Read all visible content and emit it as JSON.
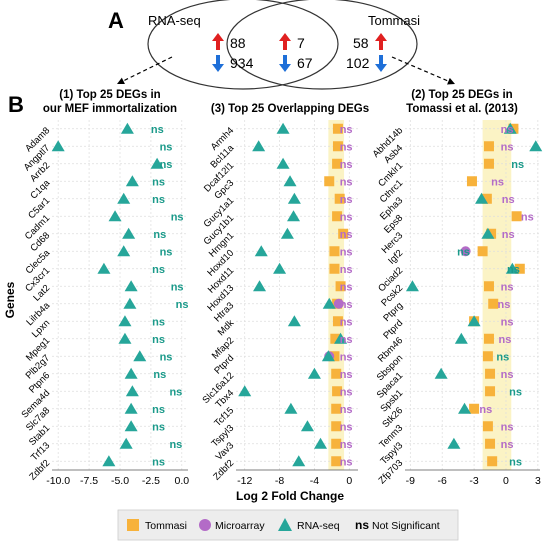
{
  "labels": {
    "A": "A",
    "B": "B"
  },
  "venn": {
    "left_label": "RNA-seq",
    "right_label": "Tommasi",
    "left": {
      "up": "88",
      "down": "934"
    },
    "overlap": {
      "up": "7",
      "down": "67"
    },
    "right": {
      "up": "58",
      "down": "102"
    }
  },
  "ylabel": "Genes",
  "xlabel": "Log 2 Fold Change",
  "ns_text": "ns",
  "legend": [
    {
      "key": "tommasi",
      "label": "Tommasi"
    },
    {
      "key": "micro",
      "label": "Microarray"
    },
    {
      "key": "rnaseq",
      "label": "RNA-seq"
    },
    {
      "key": "ns",
      "label": "Not Significant"
    }
  ],
  "colors": {
    "tommasi": "#F7B23B",
    "micro": "#B36BC7",
    "rnaseq": "#26A69A",
    "ns_tommasi": "#D4792A",
    "ns_micro": "#B36BC7",
    "ns_rnaseq": "#1A9A8A",
    "up": "#E02020",
    "down": "#1E6FD8",
    "highlight": "#FBF3C5"
  },
  "chart_data": [
    {
      "type": "scatter",
      "title_line1": "(1) Top 25 DEGs in",
      "title_line2": "our MEF immortalization",
      "xlim": [
        -10.5,
        0.5
      ],
      "xticks": [
        -10.0,
        -7.5,
        -5.0,
        -2.5,
        0.0
      ],
      "xtick_labels": [
        "-10.0",
        "-7.5",
        "-5.0",
        "-2.5",
        "0.0"
      ],
      "highlight": false,
      "genes": [
        "Adam8",
        "Angptl7",
        "Arrb2",
        "C1qa",
        "C5ar1",
        "Cadm1",
        "Cd68",
        "Clec5a",
        "Cx3cr1",
        "Lat2",
        "Lilrb4a",
        "Lpxn",
        "Mpeg1",
        "Plb2g7",
        "Ptpn6",
        "Sema4d",
        "Slc7a8",
        "Stab1",
        "Trf13",
        "Zdbf2"
      ],
      "rnaseq": [
        -4.4,
        -10.0,
        -2.0,
        -4.0,
        -4.7,
        -5.4,
        -4.3,
        -4.7,
        -6.3,
        -4.1,
        -4.2,
        -4.6,
        -4.6,
        -3.4,
        -4.1,
        -4.0,
        -4.1,
        -4.1,
        -4.5,
        -5.9
      ],
      "ns": [
        {
          "v": "rnaseq",
          "x": -2.5
        },
        {
          "v": "rnaseq",
          "x": -1.8
        },
        {
          "v": "rnaseq",
          "x": -1.8
        },
        {
          "v": "rnaseq",
          "x": -2.4
        },
        {
          "v": "rnaseq",
          "x": -2.4
        },
        {
          "v": "rnaseq",
          "x": -0.9
        },
        {
          "v": "rnaseq",
          "x": -2.3
        },
        {
          "v": "rnaseq",
          "x": -1.8
        },
        {
          "v": "rnaseq",
          "x": -2.4
        },
        {
          "v": "rnaseq",
          "x": -0.9
        },
        {
          "v": "rnaseq",
          "x": -0.5
        },
        {
          "v": "rnaseq",
          "x": -2.4
        },
        {
          "v": "rnaseq",
          "x": -2.4
        },
        {
          "v": "rnaseq",
          "x": -1.8
        },
        {
          "v": "rnaseq",
          "x": -2.3
        },
        {
          "v": "rnaseq",
          "x": -1.0
        },
        {
          "v": "rnaseq",
          "x": -2.4
        },
        {
          "v": "rnaseq",
          "x": -2.4
        },
        {
          "v": "rnaseq",
          "x": -1.0
        },
        {
          "v": "rnaseq",
          "x": -2.4
        }
      ]
    },
    {
      "type": "scatter",
      "title_line1": "(3) Top 25 Overlapping DEGs",
      "title_line2": "",
      "xlim": [
        -13,
        1
      ],
      "xticks": [
        -12,
        -8,
        -4,
        0
      ],
      "xtick_labels": [
        "-12",
        "-8",
        "-4",
        "0"
      ],
      "highlight": true,
      "highlight_range": [
        -2.4,
        -0.6
      ],
      "genes": [
        "Armh4",
        "Bcl11a",
        "Dcaf12l1",
        "Gpc3",
        "Gucy1a1",
        "Gucy1b1",
        "Hmgn1",
        "Hoxd10",
        "Hoxd11",
        "Hoxd13",
        "Htra3",
        "Mdk",
        "Mfap2",
        "Ptprd",
        "Slc16a12",
        "Tbx4",
        "Tcf15",
        "Tspyl3",
        "Vav3",
        "Zdbf2"
      ],
      "rnaseq": [
        -7.6,
        -10.4,
        -7.6,
        -6.8,
        -6.3,
        -6.4,
        -7.1,
        -10.1,
        -8.0,
        -10.3,
        -2.3,
        -6.3,
        -1.0,
        -2.4,
        -4.0,
        -12.0,
        -6.7,
        -4.8,
        -3.3,
        -5.8
      ],
      "tommasi": [
        -1.3,
        -1.3,
        -1.4,
        -2.3,
        -1.1,
        -1.4,
        -0.7,
        -1.7,
        -1.7,
        -1.0,
        -1.4,
        -1.3,
        -1.6,
        -1.7,
        -1.5,
        -1.4,
        -1.5,
        -1.5,
        -1.5,
        -1.5
      ],
      "micro": [
        null,
        null,
        null,
        null,
        null,
        null,
        null,
        null,
        null,
        null,
        -1.2,
        null,
        null,
        -2.3,
        null,
        null,
        null,
        null,
        null,
        null
      ],
      "ns": [
        {
          "v": "micro",
          "x": -1.1
        },
        {
          "v": "micro",
          "x": -1.1
        },
        {
          "v": "micro",
          "x": -1.1
        },
        {
          "v": "micro",
          "x": -1.1
        },
        {
          "v": "micro",
          "x": -1.1
        },
        {
          "v": "micro",
          "x": -1.1
        },
        {
          "v": "micro",
          "x": -1.1
        },
        {
          "v": "micro",
          "x": -1.1
        },
        {
          "v": "micro",
          "x": -1.1
        },
        {
          "v": "micro",
          "x": -1.1
        },
        {
          "v": "micro",
          "x": -1.1
        },
        {
          "v": "micro",
          "x": -1.1
        },
        {
          "v": "micro",
          "x": -1.1
        },
        {
          "v": "micro",
          "x": -1.1
        },
        {
          "v": "micro",
          "x": -1.1
        },
        {
          "v": "micro",
          "x": -1.1
        },
        {
          "v": "micro",
          "x": -1.1
        },
        {
          "v": "micro",
          "x": -1.1
        },
        {
          "v": "micro",
          "x": -1.1
        },
        {
          "v": "micro",
          "x": -1.1
        }
      ]
    },
    {
      "type": "scatter",
      "title_line1": "(2) Top 25 DEGs in",
      "title_line2": "Tomassi et al. (2013)",
      "xlim": [
        -9.5,
        3.2
      ],
      "xticks": [
        -9,
        -6,
        -3,
        0,
        3
      ],
      "xtick_labels": [
        "-9",
        "-6",
        "-3",
        "0",
        "3"
      ],
      "highlight": true,
      "highlight_range": [
        -2.2,
        0.5
      ],
      "genes": [
        "Abhd14b",
        "Asb4",
        "Cmklr1",
        "Cthrc1",
        "Epha3",
        "Eps8",
        "Herc3",
        "Igf2",
        "Ociad2",
        "Pcsk2",
        "Ptprg",
        "Ptprd",
        "Rbm46",
        "Sbspon",
        "Spaca1",
        "Spsb1",
        "Stk26",
        "Tenm3",
        "Tspyl3",
        "Zfp703"
      ],
      "rnaseq": [
        0.4,
        2.8,
        null,
        null,
        -2.3,
        null,
        -1.7,
        null,
        0.6,
        -8.8,
        null,
        -3.0,
        -4.2,
        null,
        -6.1,
        null,
        -3.9,
        null,
        -4.9,
        null
      ],
      "tommasi": [
        0.7,
        -1.6,
        -1.6,
        -3.2,
        -1.8,
        1.0,
        -1.4,
        -2.2,
        1.3,
        -1.6,
        -1.2,
        -3.0,
        -1.6,
        -1.7,
        -1.5,
        -1.5,
        -3.0,
        -1.7,
        -1.5,
        -1.3
      ],
      "micro": [
        null,
        null,
        null,
        null,
        null,
        null,
        null,
        -3.8,
        null,
        null,
        null,
        null,
        null,
        null,
        null,
        null,
        null,
        null,
        null,
        null
      ],
      "ns": [
        {
          "v": "micro",
          "x": -0.5
        },
        {
          "v": "micro",
          "x": -0.5
        },
        {
          "v": "rnaseq",
          "x": 0.5
        },
        {
          "v": "micro",
          "x": -1.4
        },
        {
          "v": "micro",
          "x": -0.4
        },
        {
          "v": "micro",
          "x": 1.4
        },
        {
          "v": "micro",
          "x": -0.4
        },
        {
          "v": "rnaseq",
          "x": -4.6
        },
        {
          "v": "rnaseq",
          "x": 0.1
        },
        {
          "v": "micro",
          "x": -0.5
        },
        {
          "v": "micro",
          "x": -0.8
        },
        {
          "v": "micro",
          "x": -0.5
        },
        {
          "v": "micro",
          "x": -0.7
        },
        {
          "v": "rnaseq",
          "x": -0.9
        },
        {
          "v": "micro",
          "x": -0.5
        },
        {
          "v": "rnaseq",
          "x": 0.3
        },
        {
          "v": "micro",
          "x": -2.5
        },
        {
          "v": "micro",
          "x": -0.5
        },
        {
          "v": "micro",
          "x": -0.5
        },
        {
          "v": "rnaseq",
          "x": 0.3
        }
      ]
    }
  ]
}
